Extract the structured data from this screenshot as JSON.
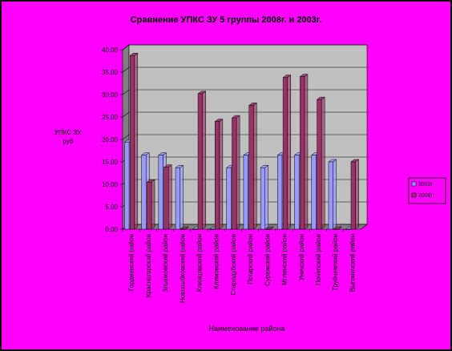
{
  "chart_data": {
    "type": "bar",
    "title": "Сравнение УПКС ЗУ 5 группы 2008г. и 2003г.",
    "ylabel": "УПКС ЗУ, руб",
    "xlabel": "Наименование района",
    "ylim": [
      0,
      40
    ],
    "yticks": [
      "0.00",
      "5.00",
      "10.00",
      "15.00",
      "20.00",
      "25.00",
      "30.00",
      "35.00",
      "40.00"
    ],
    "grid": true,
    "legend_position": "right",
    "categories": [
      "Гордеевский район",
      "Красногорский район",
      "Злынковский район",
      "Новозыбковский район",
      "Клинцовский район",
      "Климовский район",
      "Стародубский район",
      "Погарский район",
      "Суражский район",
      "Мглинский район",
      "Унечский район",
      "Почепский район",
      "Трубчевский район",
      "Выгоничский район"
    ],
    "series": [
      {
        "name": "2003г",
        "color": "#9999ff",
        "values": [
          19.4,
          16.5,
          16.5,
          13.7,
          0,
          0,
          13.7,
          16.5,
          13.7,
          16.5,
          16.5,
          16.5,
          15.0,
          0
        ]
      },
      {
        "name": "2008г",
        "color": "#993366",
        "values": [
          38.7,
          10.5,
          13.8,
          0,
          30.2,
          24.0,
          24.8,
          27.6,
          0,
          33.8,
          34.0,
          28.9,
          0,
          15.0
        ]
      }
    ]
  },
  "colors": {
    "background": "#ff00ff",
    "frame": "#000000",
    "plot_area": "#c0c0c0",
    "wall_side": "#808080",
    "floor": "#808080",
    "gridline": "#000000"
  }
}
